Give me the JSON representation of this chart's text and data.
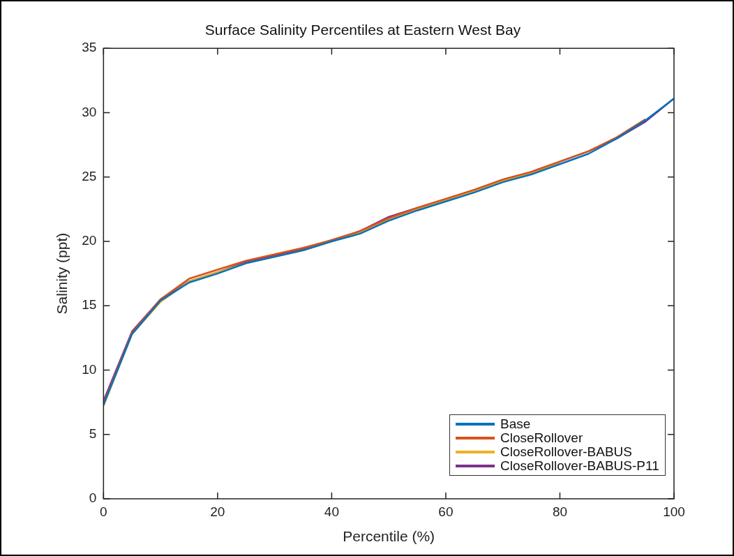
{
  "chart_data": {
    "type": "line",
    "title": "Surface Salinity Percentiles at Eastern West Bay",
    "xlabel": "Percentile (%)",
    "ylabel": "Salinity (ppt)",
    "x": [
      0,
      5,
      10,
      15,
      20,
      25,
      30,
      35,
      40,
      45,
      50,
      55,
      60,
      65,
      70,
      75,
      80,
      85,
      90,
      95,
      100
    ],
    "xlim": [
      0,
      100
    ],
    "xticks": [
      0,
      20,
      40,
      60,
      80,
      100
    ],
    "ylim": [
      0,
      35
    ],
    "yticks": [
      0,
      5,
      10,
      15,
      20,
      25,
      30,
      35
    ],
    "grid": false,
    "legend": "bottom right",
    "marker": "none",
    "line_style": "solid",
    "series": [
      {
        "name": "Base",
        "color": "#0072bd",
        "values": [
          7.3,
          12.8,
          15.4,
          16.8,
          17.5,
          18.3,
          18.8,
          19.3,
          20.0,
          20.6,
          21.6,
          22.4,
          23.1,
          23.8,
          24.6,
          25.2,
          26.0,
          26.8,
          28.0,
          29.4,
          31.1
        ]
      },
      {
        "name": "CloseRollover",
        "color": "#d95319",
        "values": [
          7.4,
          12.9,
          15.5,
          17.1,
          17.8,
          18.5,
          19.0,
          19.5,
          20.1,
          20.8,
          21.8,
          22.6,
          23.3,
          24.0,
          24.8,
          25.4,
          26.2,
          27.0,
          28.1,
          29.5,
          null
        ]
      },
      {
        "name": "CloseRollover-BABUS",
        "color": "#edb120",
        "values": [
          7.2,
          12.8,
          15.3,
          16.9,
          17.6,
          18.3,
          18.8,
          19.3,
          20.0,
          20.7,
          21.7,
          22.5,
          23.2,
          23.9,
          24.7,
          25.3,
          26.1,
          null,
          null,
          null,
          null
        ]
      },
      {
        "name": "CloseRollover-BABUS-P11",
        "color": "#7e2f8e",
        "values": [
          7.6,
          13.0,
          15.5,
          16.9,
          17.6,
          18.4,
          18.9,
          19.4,
          20.1,
          20.8,
          21.9,
          22.6,
          23.3,
          24.0,
          24.8,
          25.4,
          26.2,
          27.0,
          28.0,
          29.3,
          31.1
        ]
      }
    ]
  }
}
